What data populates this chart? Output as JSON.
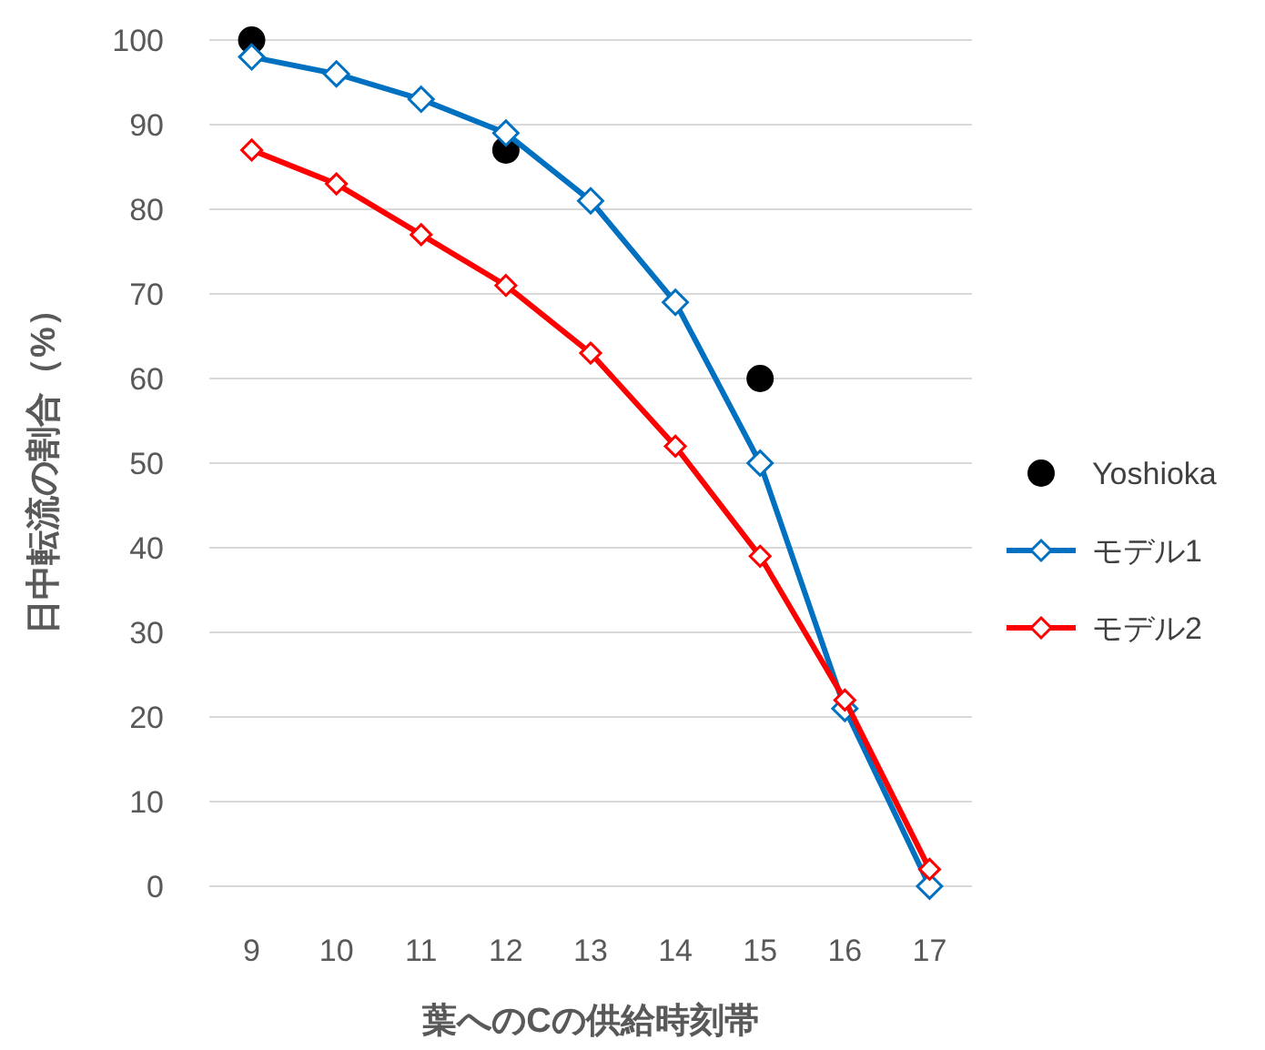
{
  "chart_data": {
    "type": "line",
    "xlabel": "葉へのCの供給時刻帯",
    "ylabel": "日中転流の割合（%）",
    "categories": [
      "9",
      "10",
      "11",
      "12",
      "13",
      "14",
      "15",
      "16",
      "17"
    ],
    "ylim": [
      0,
      100
    ],
    "yticks": [
      0,
      10,
      20,
      30,
      40,
      50,
      60,
      70,
      80,
      90,
      100
    ],
    "grid": "y",
    "legend": "right",
    "series": [
      {
        "name": "Yoshioka",
        "type": "scatter",
        "marker": "circle",
        "color": "#000000",
        "values": [
          100,
          null,
          null,
          87,
          null,
          null,
          60,
          null,
          null
        ]
      },
      {
        "name": "モデル1",
        "type": "line",
        "marker": "diamond",
        "color": "#0070c0",
        "values": [
          98,
          96,
          93,
          89,
          81,
          69,
          50,
          21,
          0
        ]
      },
      {
        "name": "モデル2",
        "type": "line",
        "marker": "diamond",
        "color": "#ff0000",
        "values": [
          87,
          83,
          77,
          71,
          63,
          52,
          39,
          22,
          2
        ]
      }
    ]
  }
}
